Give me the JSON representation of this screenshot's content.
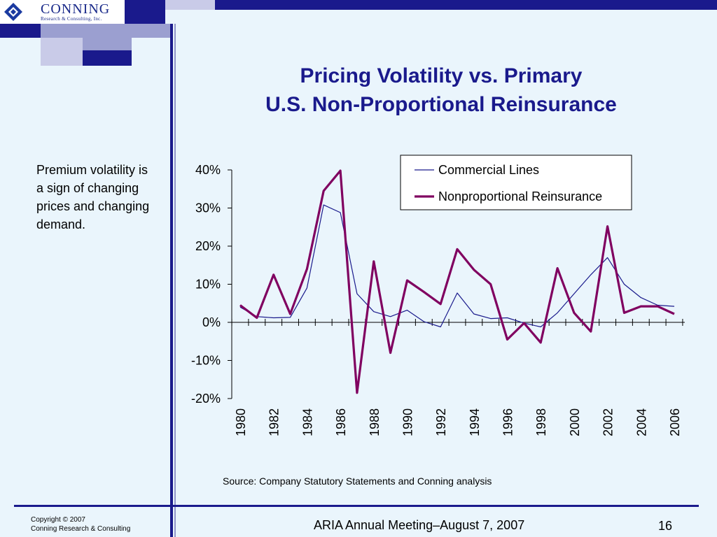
{
  "logo": {
    "name": "CONNING",
    "subtitle": "Research & Consulting, Inc."
  },
  "slide": {
    "title_line1": "Pricing Volatility vs. Primary",
    "title_line2": "U.S. Non-Proportional Reinsurance",
    "side_text": "Premium volatility is a sign of changing prices and changing demand.",
    "source": "Source: Company Statutory Statements and Conning analysis"
  },
  "footer": {
    "copyright_line1": "Copyright © 2007",
    "copyright_line2": "Conning Research & Consulting",
    "meeting": "ARIA Annual Meeting–August 7, 2007",
    "page_number": "16"
  },
  "colors": {
    "title": "#1a1a8c",
    "commercial": "#1a1a8c",
    "nonprop": "#800060",
    "block_dark": "#1a1a8c",
    "block_mid": "#9b9fd0",
    "block_light": "#c9cbe8"
  },
  "chart_data": {
    "type": "line",
    "x": [
      1980,
      1981,
      1982,
      1983,
      1984,
      1985,
      1986,
      1987,
      1988,
      1989,
      1990,
      1991,
      1992,
      1993,
      1994,
      1995,
      1996,
      1997,
      1998,
      1999,
      2000,
      2001,
      2002,
      2003,
      2004,
      2005,
      2006
    ],
    "x_tick_labels": [
      "1980",
      "1982",
      "1984",
      "1986",
      "1988",
      "1990",
      "1992",
      "1994",
      "1996",
      "1998",
      "2000",
      "2002",
      "2004",
      "2006"
    ],
    "y_tick_labels": [
      "40%",
      "30%",
      "20%",
      "10%",
      "0%",
      "-10%",
      "-20%"
    ],
    "ylim": [
      -20,
      40
    ],
    "y_unit": "%",
    "legend_position": "top-right",
    "series": [
      {
        "name": "Commercial Lines",
        "color": "#1a1a8c",
        "width": "thin",
        "values": [
          4.0,
          1.5,
          1.2,
          1.3,
          9.0,
          30.8,
          28.8,
          7.5,
          2.8,
          1.5,
          3.2,
          0.2,
          -1.2,
          7.7,
          2.2,
          1.0,
          1.2,
          -0.2,
          -1.2,
          2.5,
          7.5,
          12.5,
          17.0,
          10.0,
          6.5,
          4.5,
          4.2
        ]
      },
      {
        "name": "Nonproportional Reinsurance",
        "color": "#800060",
        "width": "thick",
        "values": [
          4.5,
          1.2,
          12.5,
          2.2,
          14.0,
          34.5,
          39.8,
          -18.5,
          16.0,
          -8.0,
          11.0,
          8.0,
          4.8,
          19.2,
          13.8,
          10.0,
          -4.5,
          -0.2,
          -5.3,
          14.2,
          2.5,
          -2.4,
          25.2,
          2.5,
          4.2,
          4.2,
          2.2
        ]
      }
    ]
  }
}
